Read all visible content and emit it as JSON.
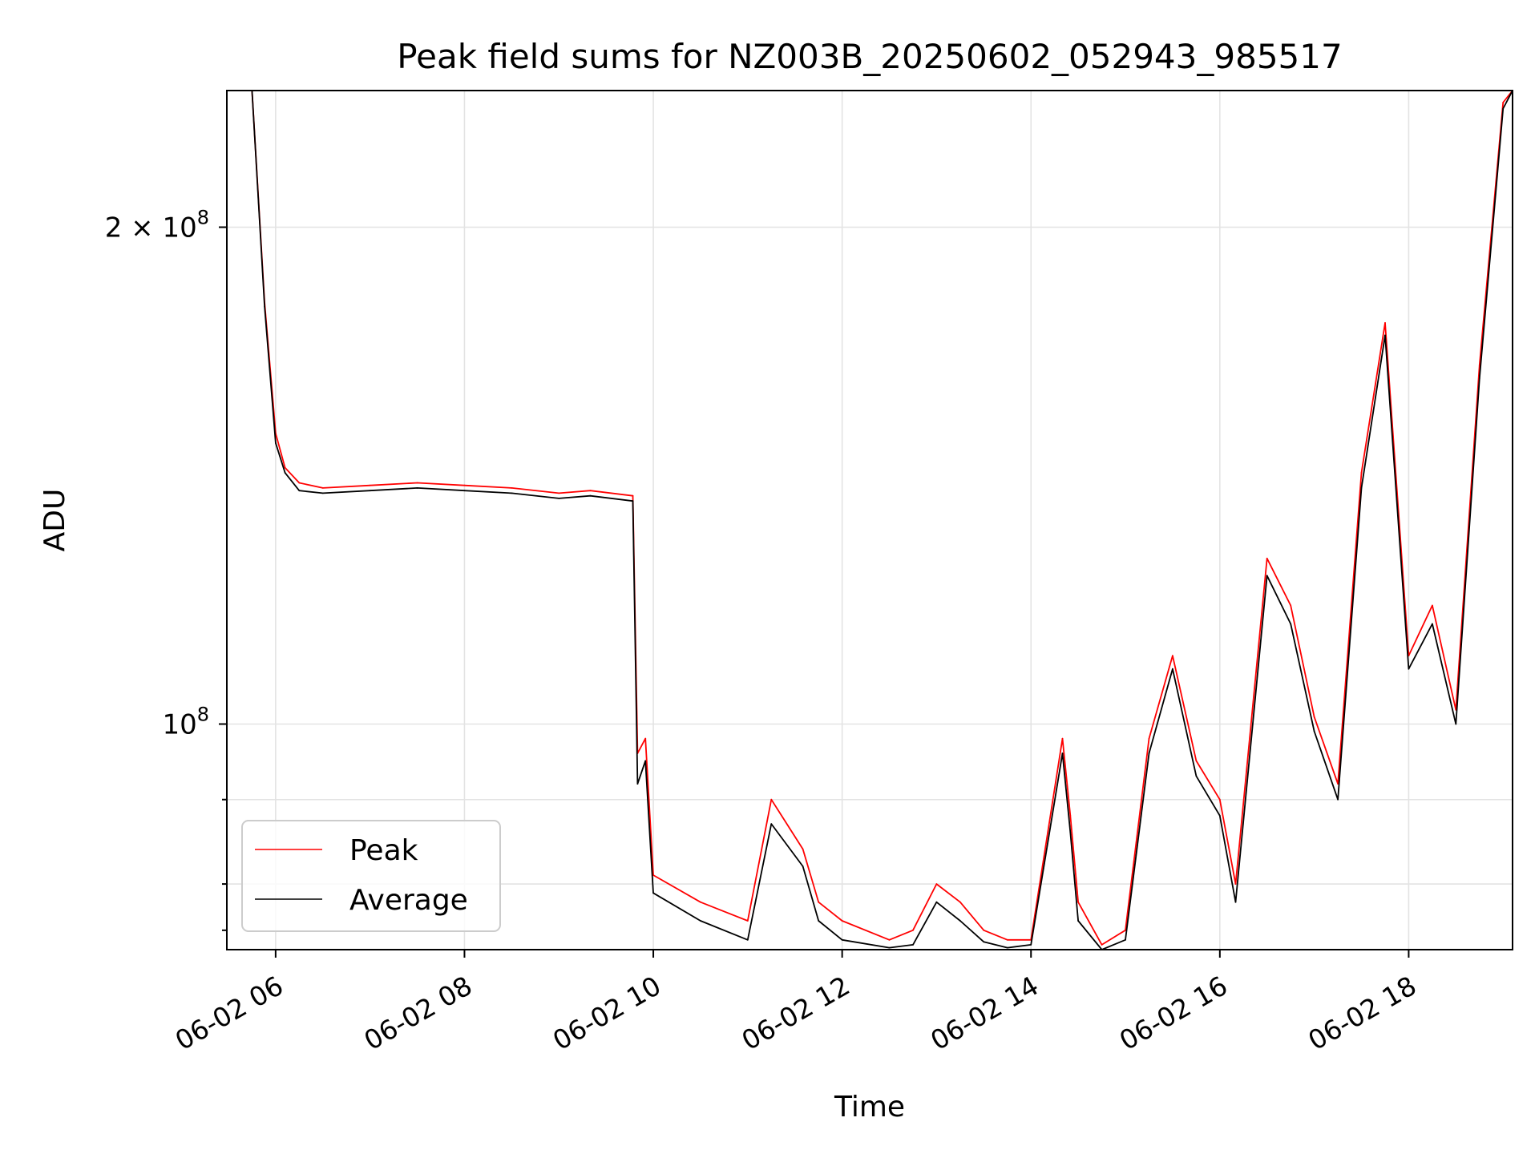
{
  "chart_data": {
    "type": "line",
    "title": "Peak field sums for NZ003B_20250602_052943_985517",
    "xlabel": "Time",
    "ylabel": "ADU",
    "xlim": [
      "06-02 05:29",
      "06-02 19:06"
    ],
    "ylim": [
      73000000,
      242000000
    ],
    "yscale": "log",
    "grid": true,
    "legend": "lower-left",
    "x_ticks": [
      "06-02 06",
      "06-02 08",
      "06-02 10",
      "06-02 12",
      "06-02 14",
      "06-02 16",
      "06-02 18"
    ],
    "y_ticks": [
      {
        "base": "2 × 10",
        "exp": "8"
      },
      {
        "base": "10",
        "exp": "8"
      }
    ],
    "x": [
      "05:29",
      "05:45",
      "05:53",
      "06:00",
      "06:06",
      "06:15",
      "06:30",
      "07:00",
      "07:30",
      "08:00",
      "08:30",
      "09:00",
      "09:20",
      "09:47",
      "09:50",
      "09:55",
      "10:00",
      "10:30",
      "11:00",
      "11:15",
      "11:35",
      "11:45",
      "12:00",
      "12:30",
      "12:45",
      "13:00",
      "13:15",
      "13:30",
      "13:45",
      "14:00",
      "14:20",
      "14:25",
      "14:30",
      "14:45",
      "15:00",
      "15:15",
      "15:30",
      "15:45",
      "16:00",
      "16:10",
      "16:30",
      "16:45",
      "17:00",
      "17:15",
      "17:30",
      "17:45",
      "18:00",
      "18:15",
      "18:30",
      "18:45",
      "19:00",
      "19:06"
    ],
    "series": [
      {
        "name": "Peak",
        "color": "#ff0000",
        "values": [
          242,
          242,
          180,
          150,
          143,
          140,
          139,
          139.5,
          140,
          139.5,
          139,
          138,
          138.5,
          137.5,
          96,
          98,
          81,
          78,
          76,
          90,
          84,
          78,
          76,
          74,
          75,
          80,
          78,
          75,
          74,
          74,
          98,
          88,
          78,
          73.5,
          75,
          98,
          110,
          95,
          90,
          80,
          126,
          118,
          101,
          92,
          142,
          175,
          110,
          118,
          102,
          165,
          238,
          242
        ]
      },
      {
        "name": "Average",
        "color": "#000000",
        "values": [
          242,
          242,
          179,
          148,
          142,
          138.5,
          138,
          138.5,
          139,
          138.5,
          138,
          137,
          137.5,
          136.5,
          92,
          95,
          79,
          76,
          74,
          87,
          82,
          76,
          74,
          73.2,
          73.5,
          78,
          76,
          73.8,
          73.2,
          73.5,
          96,
          86,
          76,
          73,
          74,
          96,
          108,
          93,
          88,
          78,
          123,
          115,
          99,
          90,
          139,
          172,
          108,
          115,
          100,
          162,
          236,
          242
        ]
      }
    ]
  }
}
